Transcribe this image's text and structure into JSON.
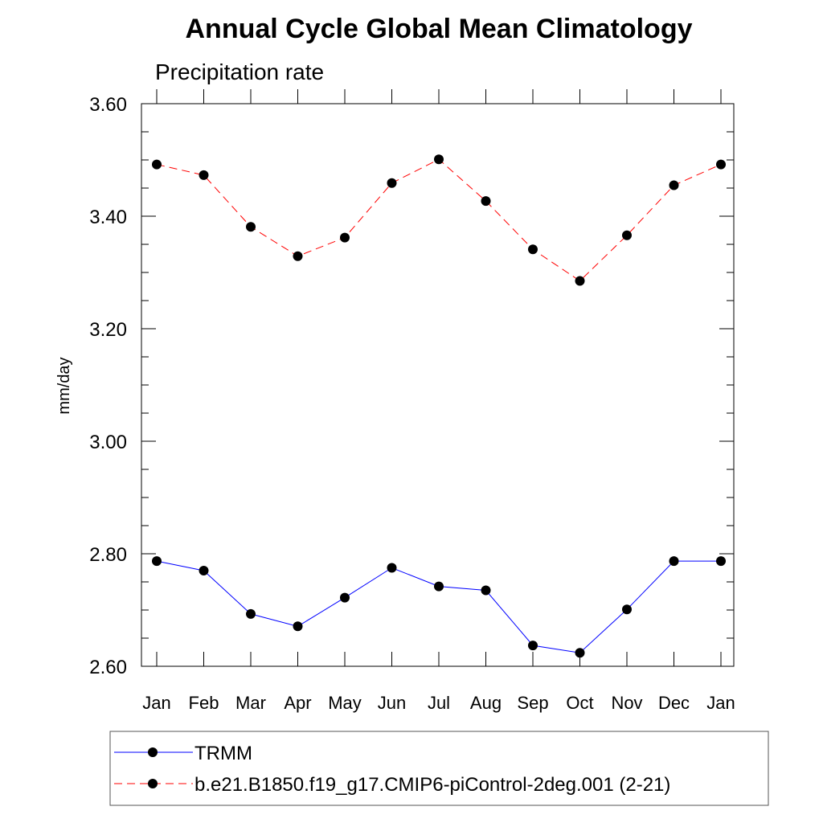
{
  "chart_data": {
    "type": "line",
    "title": "Annual Cycle Global Mean Climatology",
    "subtitle": "Precipitation rate",
    "xlabel": "",
    "ylabel": "mm/day",
    "categories": [
      "Jan",
      "Feb",
      "Mar",
      "Apr",
      "May",
      "Jun",
      "Jul",
      "Aug",
      "Sep",
      "Oct",
      "Nov",
      "Dec",
      "Jan"
    ],
    "ylim": [
      2.6,
      3.6
    ],
    "yticks": [
      "3.60",
      "3.40",
      "3.20",
      "3.00",
      "2.80",
      "2.60"
    ],
    "ytick_values": [
      3.6,
      3.4,
      3.2,
      3.0,
      2.8,
      2.6
    ],
    "grid": false,
    "legend_position": "bottom",
    "series": [
      {
        "name": "TRMM",
        "color": "#0000ff",
        "line_style": "solid",
        "marker": "filled-circle",
        "values": [
          2.787,
          2.77,
          2.693,
          2.671,
          2.722,
          2.775,
          2.742,
          2.735,
          2.637,
          2.624,
          2.701,
          2.787,
          2.787
        ]
      },
      {
        "name": "b.e21.B1850.f19_g17.CMIP6-piControl-2deg.001 (2-21)",
        "color": "#ff0000",
        "line_style": "dashed",
        "marker": "filled-circle",
        "values": [
          3.492,
          3.473,
          3.381,
          3.329,
          3.362,
          3.459,
          3.501,
          3.427,
          3.341,
          3.285,
          3.366,
          3.455,
          3.492
        ]
      }
    ]
  }
}
